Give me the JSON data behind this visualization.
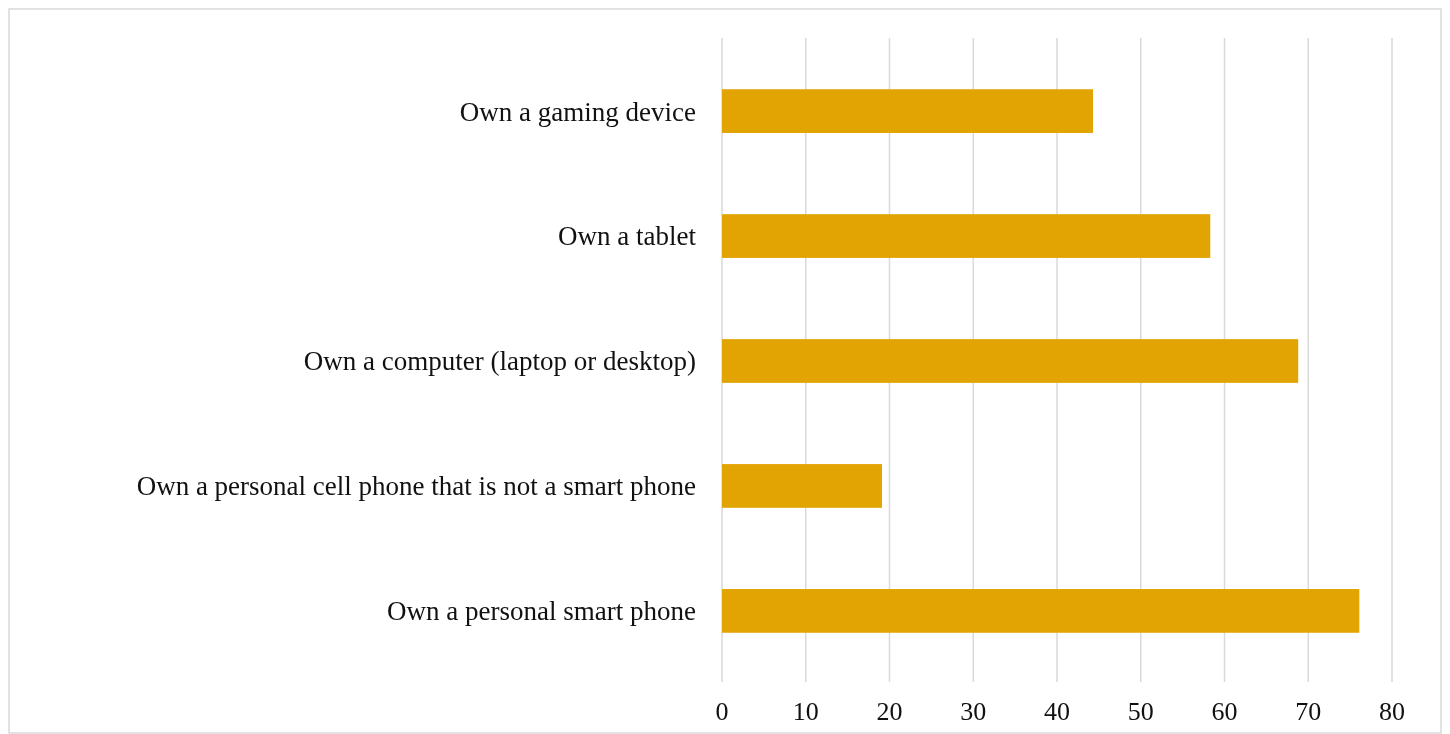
{
  "chart_data": {
    "type": "bar",
    "orientation": "horizontal",
    "categories": [
      "Own a gaming device",
      "Own a tablet",
      "Own a computer (laptop or desktop)",
      "Own a personal cell phone that is not a smart phone",
      "Own a personal smart phone"
    ],
    "values": [
      44.3,
      58.3,
      68.8,
      19.1,
      76.1
    ],
    "color": "#e2a403",
    "xlim": [
      0,
      80
    ],
    "xticks": [
      0,
      10,
      20,
      30,
      40,
      50,
      60,
      70,
      80
    ],
    "grid": "x"
  }
}
